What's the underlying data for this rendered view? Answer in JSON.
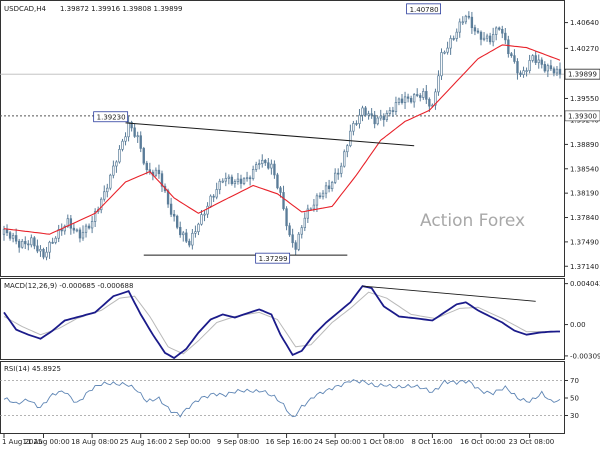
{
  "header": {
    "symbol": "USDCAD,H4",
    "ohlc": "1.39872 1.39916 1.39808 1.39899"
  },
  "watermark": "Action Forex",
  "colors": {
    "candle": "#5b7d99",
    "ma": "#e8222a",
    "macd_line": "#1b1b8a",
    "macd_signal": "#b9b9b9",
    "rsi": "#5f86b5",
    "trendline": "#1a1a1a",
    "label_border": "#2b3d9e",
    "axis": "#333333"
  },
  "chart_data": [
    {
      "type": "candlestick",
      "title": "USDCAD,H4",
      "ylim": [
        1.37,
        1.4095
      ],
      "ytick_labels": [
        "1.40640",
        "1.40270",
        "1.39550",
        "1.39240",
        "1.38890",
        "1.38540",
        "1.38190",
        "1.37840",
        "1.37490",
        "1.37140"
      ],
      "ytick_values": [
        1.4064,
        1.4027,
        1.3955,
        1.3924,
        1.3889,
        1.3854,
        1.3819,
        1.3784,
        1.3749,
        1.3714
      ],
      "current_price": {
        "label": "1.39899",
        "value": 1.39899
      },
      "horizontal_line": {
        "label": "1.39300",
        "value": 1.393
      },
      "annotations": [
        {
          "label": "1.40780",
          "value": 1.4078
        },
        {
          "label": "1.39230",
          "value": 1.3923
        },
        {
          "label": "1.37299",
          "value": 1.37299
        }
      ],
      "x_labels": [
        "1 Aug 2025",
        "11 Aug 00:00",
        "18 Aug 08:00",
        "25 Aug 16:00",
        "2 Sep 00:00",
        "9 Sep 08:00",
        "16 Sep 16:00",
        "24 Sep 00:00",
        "1 Oct 08:00",
        "8 Oct 16:00",
        "16 Oct 00:00",
        "23 Oct 08:00"
      ],
      "x_label_index": [
        0,
        13,
        29,
        45,
        61,
        77,
        93,
        109,
        125,
        141,
        157,
        173
      ],
      "n_bars": 184,
      "close_path": [
        [
          0,
          1.376
        ],
        [
          5,
          1.3745
        ],
        [
          9,
          1.3755
        ],
        [
          13,
          1.3728
        ],
        [
          17,
          1.3752
        ],
        [
          21,
          1.378
        ],
        [
          25,
          1.3762
        ],
        [
          29,
          1.3775
        ],
        [
          33,
          1.3815
        ],
        [
          37,
          1.3872
        ],
        [
          41,
          1.392
        ],
        [
          44,
          1.3895
        ],
        [
          47,
          1.3845
        ],
        [
          51,
          1.385
        ],
        [
          55,
          1.3795
        ],
        [
          58,
          1.376
        ],
        [
          61,
          1.3742
        ],
        [
          64,
          1.3775
        ],
        [
          68,
          1.3815
        ],
        [
          72,
          1.384
        ],
        [
          76,
          1.383
        ],
        [
          80,
          1.384
        ],
        [
          84,
          1.387
        ],
        [
          88,
          1.3855
        ],
        [
          91,
          1.3812
        ],
        [
          94,
          1.3755
        ],
        [
          96,
          1.3745
        ],
        [
          99,
          1.379
        ],
        [
          103,
          1.3808
        ],
        [
          107,
          1.3825
        ],
        [
          111,
          1.3862
        ],
        [
          114,
          1.3912
        ],
        [
          118,
          1.3935
        ],
        [
          122,
          1.392
        ],
        [
          126,
          1.3935
        ],
        [
          130,
          1.3955
        ],
        [
          134,
          1.395
        ],
        [
          138,
          1.396
        ],
        [
          141,
          1.3945
        ],
        [
          144,
          1.402
        ],
        [
          148,
          1.404
        ],
        [
          152,
          1.4072
        ],
        [
          156,
          1.405
        ],
        [
          160,
          1.4042
        ],
        [
          163,
          1.4055
        ],
        [
          166,
          1.402
        ],
        [
          170,
          1.399
        ],
        [
          174,
          1.4018
        ],
        [
          178,
          1.3995
        ],
        [
          183,
          1.399
        ]
      ],
      "series": [
        {
          "name": "",
          "kind": "moving_average",
          "path": [
            [
              0,
              1.3768
            ],
            [
              15,
              1.376
            ],
            [
              30,
              1.379
            ],
            [
              40,
              1.3835
            ],
            [
              48,
              1.385
            ],
            [
              56,
              1.3812
            ],
            [
              64,
              1.379
            ],
            [
              72,
              1.3808
            ],
            [
              82,
              1.383
            ],
            [
              90,
              1.3818
            ],
            [
              98,
              1.3792
            ],
            [
              108,
              1.38
            ],
            [
              116,
              1.3845
            ],
            [
              124,
              1.3895
            ],
            [
              132,
              1.3922
            ],
            [
              140,
              1.3938
            ],
            [
              148,
              1.3975
            ],
            [
              156,
              1.4012
            ],
            [
              164,
              1.4032
            ],
            [
              172,
              1.4028
            ],
            [
              183,
              1.401
            ]
          ]
        }
      ],
      "trendlines": [
        {
          "from": [
            40,
            1.392
          ],
          "to": [
            135,
            1.3887
          ]
        },
        {
          "from": [
            46,
            1.37299
          ],
          "to": [
            113,
            1.37299
          ]
        }
      ]
    },
    {
      "type": "line",
      "title": "MACD(12,26,9) -0.000685 -0.000688",
      "ylim": [
        -0.0034,
        0.0044
      ],
      "ytick_labels": [
        "0.004043",
        "0.00",
        "-0.003094"
      ],
      "ytick_values": [
        0.004043,
        0.0,
        -0.003094
      ],
      "zero_label": "0.00",
      "series": [
        {
          "name": "",
          "path": [
            [
              0,
              0.0012
            ],
            [
              4,
              -0.0005
            ],
            [
              8,
              -0.001
            ],
            [
              12,
              -0.0014
            ],
            [
              16,
              -0.0006
            ],
            [
              20,
              0.0004
            ],
            [
              25,
              0.0008
            ],
            [
              30,
              0.0012
            ],
            [
              36,
              0.0028
            ],
            [
              41,
              0.0033
            ],
            [
              45,
              0.001
            ],
            [
              49,
              -0.001
            ],
            [
              53,
              -0.0028
            ],
            [
              56,
              -0.0033
            ],
            [
              60,
              -0.0024
            ],
            [
              64,
              -0.0008
            ],
            [
              68,
              0.0005
            ],
            [
              72,
              0.001
            ],
            [
              76,
              0.0007
            ],
            [
              80,
              0.0011
            ],
            [
              84,
              0.0015
            ],
            [
              88,
              0.001
            ],
            [
              91,
              -0.001
            ],
            [
              95,
              -0.003
            ],
            [
              98,
              -0.0026
            ],
            [
              102,
              -0.001
            ],
            [
              106,
              0.0002
            ],
            [
              110,
              0.0012
            ],
            [
              114,
              0.0022
            ],
            [
              118,
              0.0038
            ],
            [
              121,
              0.0036
            ],
            [
              125,
              0.0018
            ],
            [
              130,
              0.0008
            ],
            [
              136,
              0.0006
            ],
            [
              141,
              0.0004
            ],
            [
              145,
              0.0012
            ],
            [
              149,
              0.002
            ],
            [
              152,
              0.0022
            ],
            [
              156,
              0.0014
            ],
            [
              160,
              0.0008
            ],
            [
              164,
              0.0002
            ],
            [
              168,
              -0.0006
            ],
            [
              172,
              -0.001
            ],
            [
              176,
              -0.0008
            ],
            [
              180,
              -0.0007
            ],
            [
              183,
              -0.00068
            ]
          ]
        },
        {
          "name": "",
          "path": [
            [
              0,
              0.0008
            ],
            [
              6,
              -0.0002
            ],
            [
              12,
              -0.001
            ],
            [
              18,
              -0.0004
            ],
            [
              24,
              0.0006
            ],
            [
              32,
              0.0014
            ],
            [
              38,
              0.0026
            ],
            [
              43,
              0.0028
            ],
            [
              48,
              0.0008
            ],
            [
              54,
              -0.0022
            ],
            [
              59,
              -0.0029
            ],
            [
              64,
              -0.0016
            ],
            [
              70,
              0.0002
            ],
            [
              76,
              0.0008
            ],
            [
              84,
              0.0012
            ],
            [
              90,
              0.0005
            ],
            [
              96,
              -0.0022
            ],
            [
              101,
              -0.002
            ],
            [
              108,
              0.0002
            ],
            [
              114,
              0.0016
            ],
            [
              120,
              0.0032
            ],
            [
              126,
              0.0026
            ],
            [
              134,
              0.001
            ],
            [
              142,
              0.0006
            ],
            [
              150,
              0.0016
            ],
            [
              156,
              0.0017
            ],
            [
              164,
              0.0006
            ],
            [
              172,
              -0.0007
            ],
            [
              183,
              -0.00069
            ]
          ]
        }
      ],
      "trendlines": [
        {
          "from": [
            118,
            0.0038
          ],
          "to": [
            175,
            0.0023
          ]
        }
      ]
    },
    {
      "type": "line",
      "title": "RSI(14) 45.8925",
      "ylim": [
        10,
        90
      ],
      "ytick_labels": [
        "70",
        "50",
        "30"
      ],
      "ytick_values": [
        70,
        50,
        30
      ],
      "levels": [
        70,
        30
      ],
      "series": [
        {
          "name": "",
          "path": [
            [
              0,
              48
            ],
            [
              4,
              42
            ],
            [
              8,
              50
            ],
            [
              12,
              40
            ],
            [
              16,
              52
            ],
            [
              20,
              57
            ],
            [
              24,
              46
            ],
            [
              28,
              58
            ],
            [
              32,
              64
            ],
            [
              36,
              67
            ],
            [
              40,
              68
            ],
            [
              43,
              61
            ],
            [
              47,
              44
            ],
            [
              51,
              50
            ],
            [
              55,
              37
            ],
            [
              58,
              30
            ],
            [
              61,
              38
            ],
            [
              65,
              50
            ],
            [
              69,
              57
            ],
            [
              73,
              53
            ],
            [
              77,
              56
            ],
            [
              81,
              59
            ],
            [
              85,
              60
            ],
            [
              89,
              50
            ],
            [
              92,
              40
            ],
            [
              95,
              27
            ],
            [
              98,
              42
            ],
            [
              102,
              52
            ],
            [
              106,
              56
            ],
            [
              110,
              64
            ],
            [
              114,
              72
            ],
            [
              118,
              68
            ],
            [
              122,
              62
            ],
            [
              126,
              66
            ],
            [
              130,
              64
            ],
            [
              134,
              62
            ],
            [
              138,
              60
            ],
            [
              141,
              58
            ],
            [
              145,
              70
            ],
            [
              149,
              66
            ],
            [
              153,
              68
            ],
            [
              157,
              60
            ],
            [
              161,
              56
            ],
            [
              165,
              60
            ],
            [
              169,
              50
            ],
            [
              173,
              48
            ],
            [
              177,
              55
            ],
            [
              180,
              44
            ],
            [
              183,
              45.9
            ]
          ]
        }
      ]
    }
  ]
}
